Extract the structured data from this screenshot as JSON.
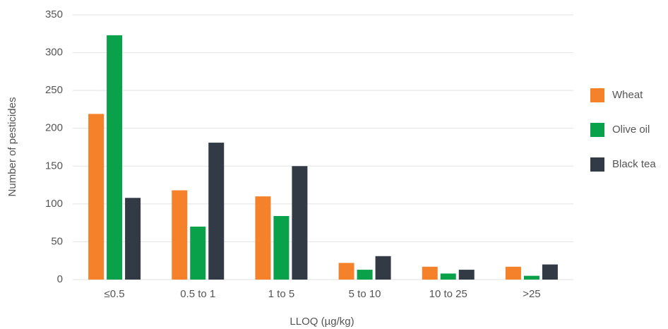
{
  "chart_data": {
    "type": "bar",
    "x_label": "LLOQ (µg/kg)",
    "y_label": "Number of pesticides",
    "categories": [
      "≤0.5",
      "0.5 to 1",
      "1 to 5",
      "5 to 10",
      "10 to 25",
      ">25"
    ],
    "series": [
      {
        "name": "Wheat",
        "color": "#f5822a",
        "values": [
          219,
          118,
          110,
          22,
          17,
          17
        ]
      },
      {
        "name": "Olive oil",
        "color": "#0aa14b",
        "values": [
          323,
          70,
          84,
          13,
          8,
          5
        ]
      },
      {
        "name": "Black tea",
        "color": "#323a45",
        "values": [
          108,
          181,
          150,
          31,
          13,
          20
        ]
      }
    ],
    "ylim": [
      0,
      350
    ],
    "yticks": [
      0,
      50,
      100,
      150,
      200,
      250,
      300,
      350
    ],
    "grid": true,
    "legend": "right"
  }
}
